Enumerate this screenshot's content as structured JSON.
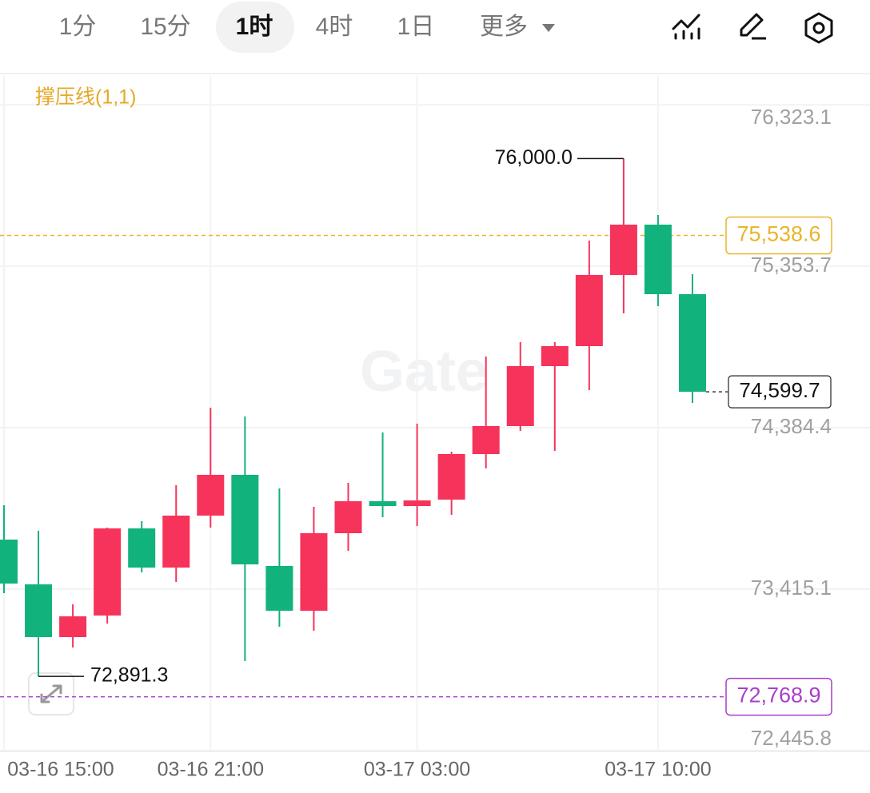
{
  "toolbar": {
    "tabs": [
      "1分",
      "15分",
      "1时",
      "4时",
      "1日",
      "更多"
    ],
    "selected": 2
  },
  "chart_data": {
    "type": "candlestick",
    "indicator": "撑压线(1,1)",
    "watermark": "Gate",
    "up_color": "#f6335a",
    "down_color": "#12b27c",
    "categories": [
      "03-16 15:00",
      null,
      null,
      null,
      null,
      null,
      "03-16 21:00",
      null,
      null,
      null,
      null,
      null,
      "03-17 03:00",
      null,
      null,
      null,
      null,
      null,
      null,
      "03-17 10:00",
      null
    ],
    "candles": [
      {
        "open": 73712.4,
        "high": 73918.8,
        "low": 73390.8,
        "close": 73448.4
      },
      {
        "open": 73443.6,
        "high": 73765.2,
        "low": 72891.3,
        "close": 73126.8,
        "low_label": "72,891.3"
      },
      {
        "open": 73126.8,
        "high": 73323.6,
        "low": 73064.4,
        "close": 73251.6
      },
      {
        "open": 73256.4,
        "high": 73784.4,
        "low": 73208.4,
        "close": 73779.6
      },
      {
        "open": 73779.6,
        "high": 73822.8,
        "low": 73515.6,
        "close": 73544.4
      },
      {
        "open": 73544.4,
        "high": 74038.8,
        "low": 73458.0,
        "close": 73856.4
      },
      {
        "open": 73856.4,
        "high": 74504.4,
        "low": 73784.4,
        "close": 74101.2
      },
      {
        "open": 74101.2,
        "high": 74451.6,
        "low": 72982.8,
        "close": 73563.6
      },
      {
        "open": 73554.0,
        "high": 74019.6,
        "low": 73189.2,
        "close": 73285.2
      },
      {
        "open": 73285.2,
        "high": 73909.2,
        "low": 73165.2,
        "close": 73750.8
      },
      {
        "open": 73750.8,
        "high": 74053.2,
        "low": 73645.2,
        "close": 73942.8
      },
      {
        "open": 73942.8,
        "high": 74355.6,
        "low": 73846.8,
        "close": 73914.0
      },
      {
        "open": 73914.0,
        "high": 74408.4,
        "low": 73794.0,
        "close": 73947.6
      },
      {
        "open": 73952.4,
        "high": 74240.4,
        "low": 73861.2,
        "close": 74226.0
      },
      {
        "open": 74226.0,
        "high": 74811.6,
        "low": 74139.6,
        "close": 74394.0
      },
      {
        "open": 74394.0,
        "high": 74898.0,
        "low": 74365.2,
        "close": 74754.0
      },
      {
        "open": 74754.0,
        "high": 74898.0,
        "low": 74245.2,
        "close": 74874.0
      },
      {
        "open": 74874.0,
        "high": 75507.6,
        "low": 74610.0,
        "close": 75301.2
      },
      {
        "open": 75301.2,
        "high": 76000.0,
        "low": 75070.8,
        "close": 75603.6,
        "high_label": "76,000.0"
      },
      {
        "open": 75603.6,
        "high": 75661.2,
        "low": 75114.0,
        "close": 75186.0
      },
      {
        "open": 75186.0,
        "high": 75306.0,
        "low": 74533.2,
        "close": 74599.7,
        "close_label": "74,599.7"
      }
    ],
    "lines": [
      {
        "value": 75538.6,
        "label": "75,538.6",
        "color": "#e9b52a"
      },
      {
        "value": 72768.9,
        "label": "72,768.9",
        "color": "#a93fc9"
      }
    ],
    "ylim": [
      72416.4,
      76496.4
    ],
    "yticks": [
      {
        "value": 72445.8,
        "label": "72,445.8"
      },
      {
        "value": 73415.1,
        "label": "73,415.1"
      },
      {
        "value": 74384.4,
        "label": "74,384.4"
      },
      {
        "value": 75353.7,
        "label": "75,353.7"
      },
      {
        "value": 76323.1,
        "label": "76,323.1"
      }
    ],
    "grid": true
  }
}
